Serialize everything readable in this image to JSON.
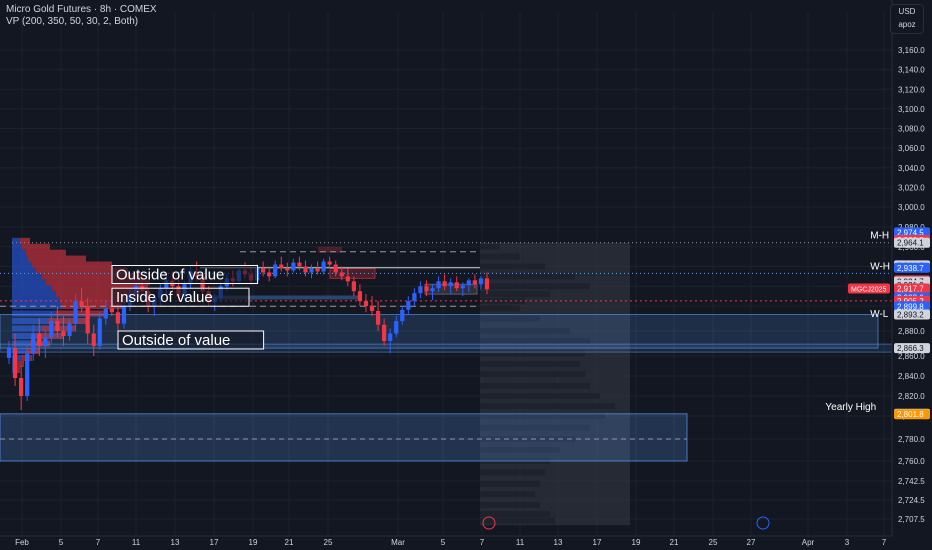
{
  "header": {
    "title": "Micro Gold Futures · 8h · COMEX",
    "indicator": "VP (200, 350, 50, 30, 2, Both)"
  },
  "axis_controls": {
    "currency": "USD",
    "unit": "apoz"
  },
  "colors": {
    "background": "#131722",
    "bull": "#2962ff",
    "bear": "#f23645",
    "grid": "#1e222d",
    "text": "#d1d4dc"
  },
  "chart_data": {
    "type": "candlestick",
    "price_scale": "log",
    "price_ticks": [
      "3,160.0",
      "3,140.0",
      "3,120.0",
      "3,100.0",
      "3,080.0",
      "3,060.0",
      "3,040.0",
      "3,020.0",
      "3,000.0",
      "2,980.0",
      "2,960.0",
      "2,940.0",
      "2,920.0",
      "2,900.0",
      "2,880.0",
      "2,860.0",
      "2,840.0",
      "2,820.0",
      "2,800.0",
      "2,780.0",
      "2,760.0",
      "2,742.5",
      "2,724.5",
      "2,707.5"
    ],
    "time_ticks": [
      "Feb",
      "5",
      "7",
      "11",
      "13",
      "17",
      "19",
      "21",
      "25",
      "Mar",
      "5",
      "7",
      "11",
      "13",
      "17",
      "19",
      "21",
      "25",
      "27",
      "Apr",
      "3",
      "7"
    ],
    "price_labels": [
      {
        "text": "2,974.5",
        "value": 2974.5,
        "color": "#2962ff"
      },
      {
        "text": "2,966.8",
        "value": 2966.8,
        "color": "#f23645"
      },
      {
        "text": "2,964.1",
        "value": 2964.1,
        "color": "#d1d4dc"
      },
      {
        "text": "2,941.2",
        "value": 2941.2,
        "color": "#d1d4dc"
      },
      {
        "text": "2,938.7",
        "value": 2938.7,
        "color": "#2962ff"
      },
      {
        "text": "2,925.9",
        "value": 2925.9,
        "color": "#f23645"
      },
      {
        "text": "2,924.7",
        "value": 2924.7,
        "color": "#d1d4dc"
      },
      {
        "text": "2,921.2",
        "value": 2921.2,
        "color": "#d1d4dc"
      },
      {
        "text": "2,917.7",
        "value": 2917.7,
        "color": "#f23645"
      },
      {
        "text": "2,908.6",
        "value": 2908.6,
        "color": "#2962ff"
      },
      {
        "text": "2,905.2",
        "value": 2905.2,
        "color": "#f23645"
      },
      {
        "text": "2,899.8",
        "value": 2899.8,
        "color": "#2962ff"
      },
      {
        "text": "2,893.2",
        "value": 2893.2,
        "color": "#d1d4dc"
      },
      {
        "text": "2,866.3",
        "value": 2866.3,
        "color": "#d1d4dc"
      },
      {
        "text": "2,802.2",
        "value": 2802.2,
        "color": "#d1d4dc"
      },
      {
        "text": "2,801.8",
        "value": 2801.8,
        "color": "#ff9800"
      }
    ],
    "symbol_tag": {
      "text": "MGCJ2025",
      "value": 2917.7
    },
    "level_labels": [
      {
        "text": "M-H",
        "value": 2964.1
      },
      {
        "text": "W-H",
        "value": 2933.0
      },
      {
        "text": "W-L",
        "value": 2888.0
      },
      {
        "text": "Yearly High",
        "value": 2801.8
      }
    ],
    "annotations": [
      "Outside of value",
      "Inside of value",
      "Outside of value"
    ],
    "ohlc": [
      [
        2858,
        2872,
        2852,
        2866
      ],
      [
        2866,
        2878,
        2830,
        2838
      ],
      [
        2838,
        2850,
        2806,
        2820
      ],
      [
        2820,
        2870,
        2815,
        2862
      ],
      [
        2862,
        2885,
        2855,
        2878
      ],
      [
        2878,
        2890,
        2860,
        2868
      ],
      [
        2868,
        2880,
        2858,
        2875
      ],
      [
        2875,
        2895,
        2870,
        2888
      ],
      [
        2888,
        2900,
        2875,
        2880
      ],
      [
        2880,
        2892,
        2868,
        2876
      ],
      [
        2876,
        2890,
        2872,
        2886
      ],
      [
        2886,
        2912,
        2880,
        2905
      ],
      [
        2905,
        2918,
        2895,
        2900
      ],
      [
        2900,
        2908,
        2870,
        2878
      ],
      [
        2878,
        2885,
        2860,
        2868
      ],
      [
        2868,
        2895,
        2865,
        2890
      ],
      [
        2890,
        2905,
        2885,
        2898
      ],
      [
        2898,
        2912,
        2892,
        2895
      ],
      [
        2895,
        2902,
        2880,
        2886
      ],
      [
        2886,
        2905,
        2882,
        2900
      ],
      [
        2900,
        2918,
        2896,
        2912
      ],
      [
        2912,
        2925,
        2905,
        2920
      ],
      [
        2920,
        2930,
        2910,
        2915
      ],
      [
        2915,
        2918,
        2895,
        2900
      ],
      [
        2900,
        2912,
        2892,
        2908
      ],
      [
        2908,
        2922,
        2900,
        2918
      ],
      [
        2918,
        2930,
        2912,
        2926
      ],
      [
        2926,
        2935,
        2915,
        2920
      ],
      [
        2920,
        2928,
        2905,
        2910
      ],
      [
        2910,
        2925,
        2906,
        2922
      ],
      [
        2922,
        2940,
        2918,
        2935
      ],
      [
        2935,
        2945,
        2925,
        2930
      ],
      [
        2930,
        2934,
        2910,
        2915
      ],
      [
        2915,
        2920,
        2900,
        2904
      ],
      [
        2904,
        2912,
        2896,
        2908
      ],
      [
        2908,
        2925,
        2904,
        2920
      ],
      [
        2920,
        2932,
        2915,
        2928
      ],
      [
        2928,
        2936,
        2920,
        2925
      ],
      [
        2925,
        2940,
        2922,
        2936
      ],
      [
        2936,
        2944,
        2928,
        2932
      ],
      [
        2932,
        2938,
        2922,
        2926
      ],
      [
        2926,
        2942,
        2924,
        2938
      ],
      [
        2938,
        2945,
        2930,
        2934
      ],
      [
        2934,
        2940,
        2925,
        2930
      ],
      [
        2930,
        2946,
        2928,
        2942
      ],
      [
        2942,
        2950,
        2935,
        2938
      ],
      [
        2938,
        2944,
        2930,
        2936
      ],
      [
        2936,
        2948,
        2934,
        2944
      ],
      [
        2944,
        2950,
        2936,
        2940
      ],
      [
        2940,
        2946,
        2930,
        2934
      ],
      [
        2934,
        2942,
        2928,
        2938
      ],
      [
        2938,
        2945,
        2932,
        2935
      ],
      [
        2935,
        2948,
        2932,
        2945
      ],
      [
        2945,
        2950,
        2938,
        2942
      ],
      [
        2942,
        2946,
        2930,
        2934
      ],
      [
        2934,
        2940,
        2926,
        2930
      ],
      [
        2930,
        2938,
        2920,
        2925
      ],
      [
        2925,
        2930,
        2910,
        2915
      ],
      [
        2915,
        2922,
        2900,
        2905
      ],
      [
        2905,
        2912,
        2895,
        2900
      ],
      [
        2900,
        2910,
        2892,
        2896
      ],
      [
        2896,
        2905,
        2880,
        2885
      ],
      [
        2885,
        2890,
        2868,
        2872
      ],
      [
        2872,
        2882,
        2862,
        2878
      ],
      [
        2878,
        2892,
        2875,
        2888
      ],
      [
        2888,
        2900,
        2885,
        2897
      ],
      [
        2897,
        2910,
        2893,
        2905
      ],
      [
        2905,
        2918,
        2900,
        2913
      ],
      [
        2913,
        2925,
        2908,
        2920
      ],
      [
        2920,
        2926,
        2910,
        2915
      ],
      [
        2915,
        2922,
        2906,
        2918
      ],
      [
        2918,
        2930,
        2914,
        2925
      ],
      [
        2925,
        2932,
        2916,
        2920
      ],
      [
        2920,
        2928,
        2912,
        2924
      ],
      [
        2924,
        2930,
        2915,
        2918
      ],
      [
        2918,
        2924,
        2910,
        2921
      ],
      [
        2921,
        2928,
        2914,
        2926
      ],
      [
        2926,
        2932,
        2918,
        2922
      ],
      [
        2922,
        2930,
        2917,
        2928
      ],
      [
        2928,
        2934,
        2912,
        2917
      ]
    ]
  }
}
